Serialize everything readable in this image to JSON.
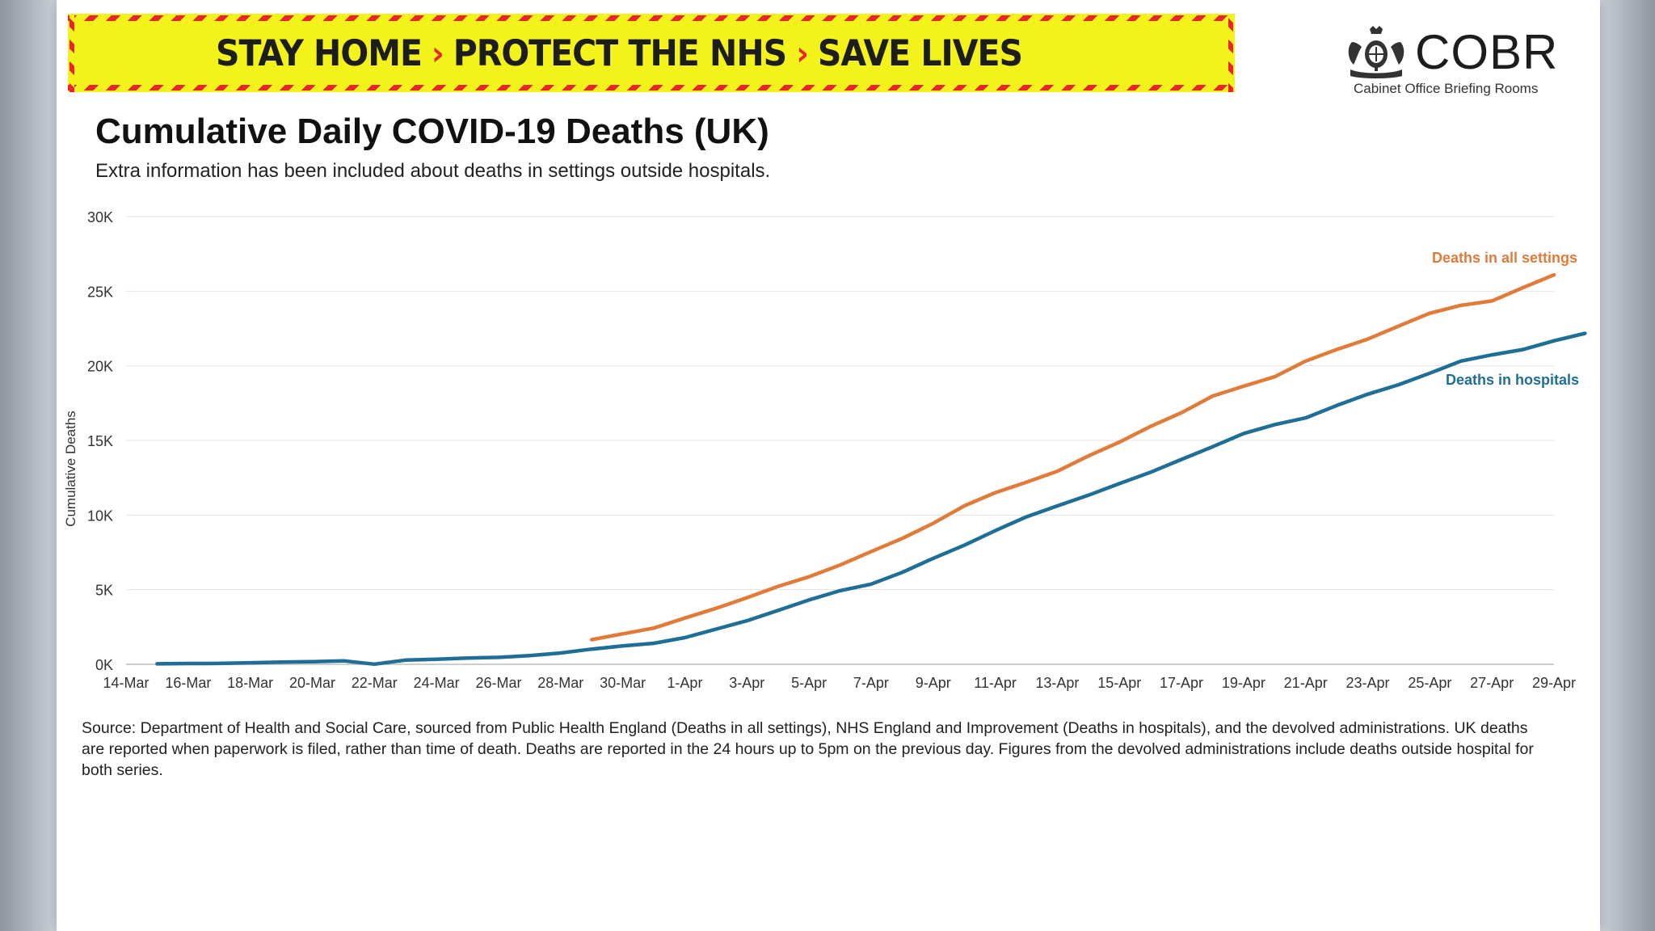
{
  "banner": {
    "part1": "STAY HOME",
    "part2": "PROTECT THE NHS",
    "part3": "SAVE LIVES",
    "separator": "›"
  },
  "logo": {
    "title": "COBR",
    "subtitle": "Cabinet Office Briefing Rooms"
  },
  "title": "Cumulative Daily COVID-19 Deaths (UK)",
  "subtitle": "Extra information has been included about deaths in settings outside hospitals.",
  "source": "Source: Department of Health and Social Care, sourced from Public Health England (Deaths in all settings), NHS England and Improvement (Deaths in hospitals), and the devolved administrations.  UK deaths are reported when paperwork is filed, rather than time of death. Deaths are reported in the 24 hours up to 5pm on the previous day. Figures from the devolved administrations include deaths outside hospital for both series.",
  "chart_data": {
    "type": "line",
    "title": "Cumulative Daily COVID-19 Deaths (UK)",
    "xlabel": "",
    "ylabel": "Cumulative Deaths",
    "ylim": [
      0,
      30000
    ],
    "y_ticks": [
      0,
      5000,
      10000,
      15000,
      20000,
      25000,
      30000
    ],
    "y_tick_labels": [
      "0K",
      "5K",
      "10K",
      "15K",
      "20K",
      "25K",
      "30K"
    ],
    "grid": true,
    "x_range_days": [
      0,
      46
    ],
    "x_tick_days": [
      0,
      2,
      4,
      6,
      8,
      10,
      12,
      14,
      16,
      18,
      20,
      22,
      24,
      26,
      28,
      30,
      32,
      34,
      36,
      38,
      40,
      42,
      44,
      46
    ],
    "x_tick_labels": [
      "14-Mar",
      "16-Mar",
      "18-Mar",
      "20-Mar",
      "22-Mar",
      "24-Mar",
      "26-Mar",
      "28-Mar",
      "30-Mar",
      "1-Apr",
      "3-Apr",
      "5-Apr",
      "7-Apr",
      "9-Apr",
      "11-Apr",
      "13-Apr",
      "15-Apr",
      "17-Apr",
      "19-Apr",
      "21-Apr",
      "23-Apr",
      "25-Apr",
      "27-Apr",
      "29-Apr"
    ],
    "series": [
      {
        "name": "Deaths in all settings",
        "color": "#e07b39",
        "start_day": 15,
        "values": [
          1651,
          2043,
          2425,
          3095,
          3747,
          4461,
          5221,
          5865,
          6650,
          7549,
          8431,
          9444,
          10612,
          11500,
          12200,
          12938,
          13962,
          14887,
          15935,
          16858,
          17975,
          18633,
          19268,
          20319,
          21092,
          21788,
          22666,
          23521,
          24053,
          24349,
          25241,
          26097
        ]
      },
      {
        "name": "Deaths in hospitals",
        "color": "#1f6e96",
        "start_day": 1,
        "values": [
          35,
          55,
          60,
          104,
          144,
          177,
          233,
          10,
          281,
          335,
          422,
          465,
          578,
          759,
          1019,
          1228,
          1408,
          1789,
          2352,
          2921,
          3605,
          4313,
          4934,
          5373,
          6159,
          7097,
          7978,
          8958,
          9875,
          10612,
          11329,
          12107,
          12868,
          13729,
          14576,
          15464,
          16060,
          16509,
          17337,
          18100,
          18738,
          19506,
          20319,
          20732,
          21092,
          21678,
          22173
        ]
      }
    ]
  }
}
